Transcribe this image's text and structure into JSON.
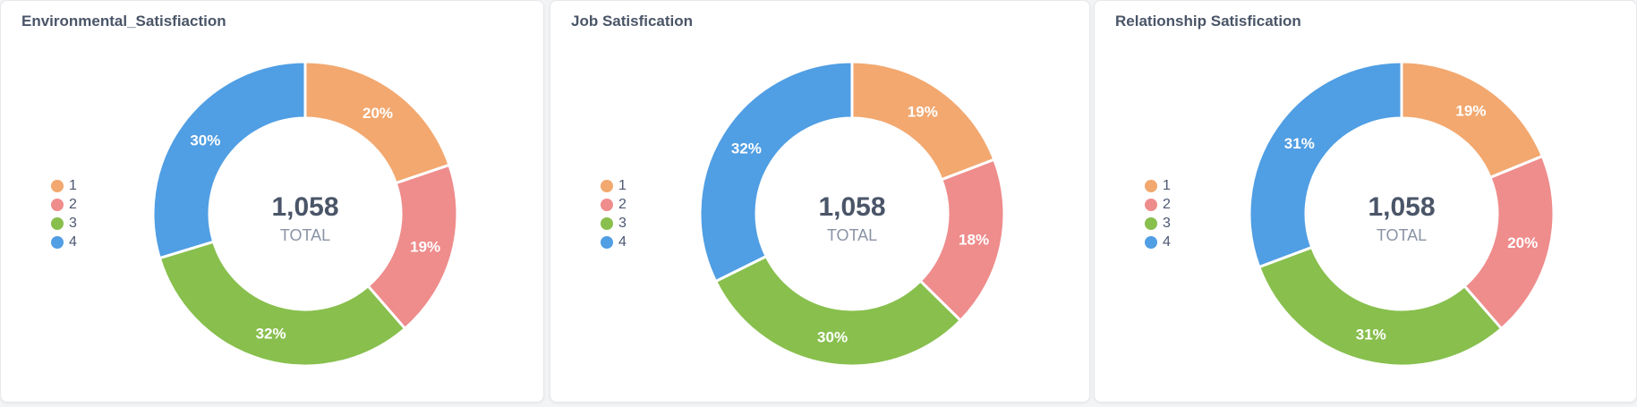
{
  "colors": {
    "1": "#f2a86f",
    "2": "#ef8c8c",
    "3": "#88bf4d",
    "4": "#509ee3"
  },
  "chart_data": [
    {
      "type": "pie",
      "title": "Environmental_Satisfiaction",
      "categories": [
        "1",
        "2",
        "3",
        "4"
      ],
      "values": [
        20,
        19,
        32,
        30
      ],
      "labels": [
        "20%",
        "19%",
        "32%",
        "30%"
      ],
      "center_value": "1,058",
      "center_label": "TOTAL",
      "legend_position": "left"
    },
    {
      "type": "pie",
      "title": "Job Satisfication",
      "categories": [
        "1",
        "2",
        "3",
        "4"
      ],
      "values": [
        19,
        18,
        30,
        32
      ],
      "labels": [
        "19%",
        "18%",
        "30%",
        "32%"
      ],
      "center_value": "1,058",
      "center_label": "TOTAL",
      "legend_position": "left"
    },
    {
      "type": "pie",
      "title": "Relationship Satisfication",
      "categories": [
        "1",
        "2",
        "3",
        "4"
      ],
      "values": [
        19,
        20,
        31,
        31
      ],
      "labels": [
        "19%",
        "20%",
        "31%",
        "31%"
      ],
      "center_value": "1,058",
      "center_label": "TOTAL",
      "legend_position": "left"
    }
  ]
}
